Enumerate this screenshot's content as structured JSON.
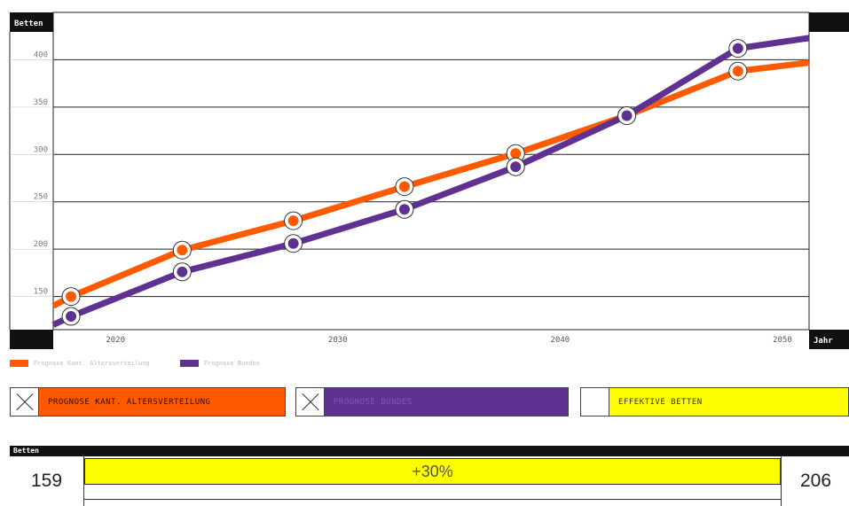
{
  "chart_data": {
    "type": "line",
    "ylabel": "Betten",
    "xlabel": "Jahr",
    "x_ticks": [
      "2020",
      "2030",
      "2040",
      "2050"
    ],
    "y_ticks": [
      "150",
      "200",
      "250",
      "300",
      "350",
      "400"
    ],
    "ylim": [
      115,
      450
    ],
    "xlim": [
      2017.2,
      2051.2
    ],
    "grid": true,
    "series": [
      {
        "color": "#ff5a00",
        "x": [
          2017.2,
          2018,
          2023,
          2028,
          2033,
          2038,
          2043,
          2048,
          2051.2
        ],
        "y": [
          140,
          150,
          199,
          230,
          266,
          301,
          341,
          388,
          397
        ]
      },
      {
        "color": "#5f3291",
        "x": [
          2017.2,
          2018,
          2023,
          2028,
          2033,
          2038,
          2043,
          2048,
          2051.2
        ],
        "y": [
          120,
          129,
          176,
          206,
          242,
          287,
          341,
          412,
          423
        ]
      }
    ],
    "marker_indices": [
      1,
      2,
      3,
      4,
      5,
      6,
      7
    ]
  },
  "legend": [
    {
      "label": "Prognose Kant. Altersverteilung",
      "color": "#ff5a00"
    },
    {
      "label": "Prognose Bundes",
      "color": "#5f3291"
    }
  ],
  "toggles": [
    {
      "label": "PROGNOSE KANT. ALTERSVERTEILUNG",
      "checked": true,
      "color": "#ff5a00",
      "text_color": "#2a1200"
    },
    {
      "label": "PROGNOSE BUNDES",
      "checked": true,
      "color": "#5f3291",
      "text_color": "#7a5ca8"
    },
    {
      "label": "EFFEKTIVE BETTEN",
      "checked": false,
      "color": "#ffff00",
      "text_color": "#333333"
    }
  ],
  "bottom": {
    "label": "Betten",
    "start_value": "159",
    "end_value": "206",
    "change": "+30%"
  }
}
